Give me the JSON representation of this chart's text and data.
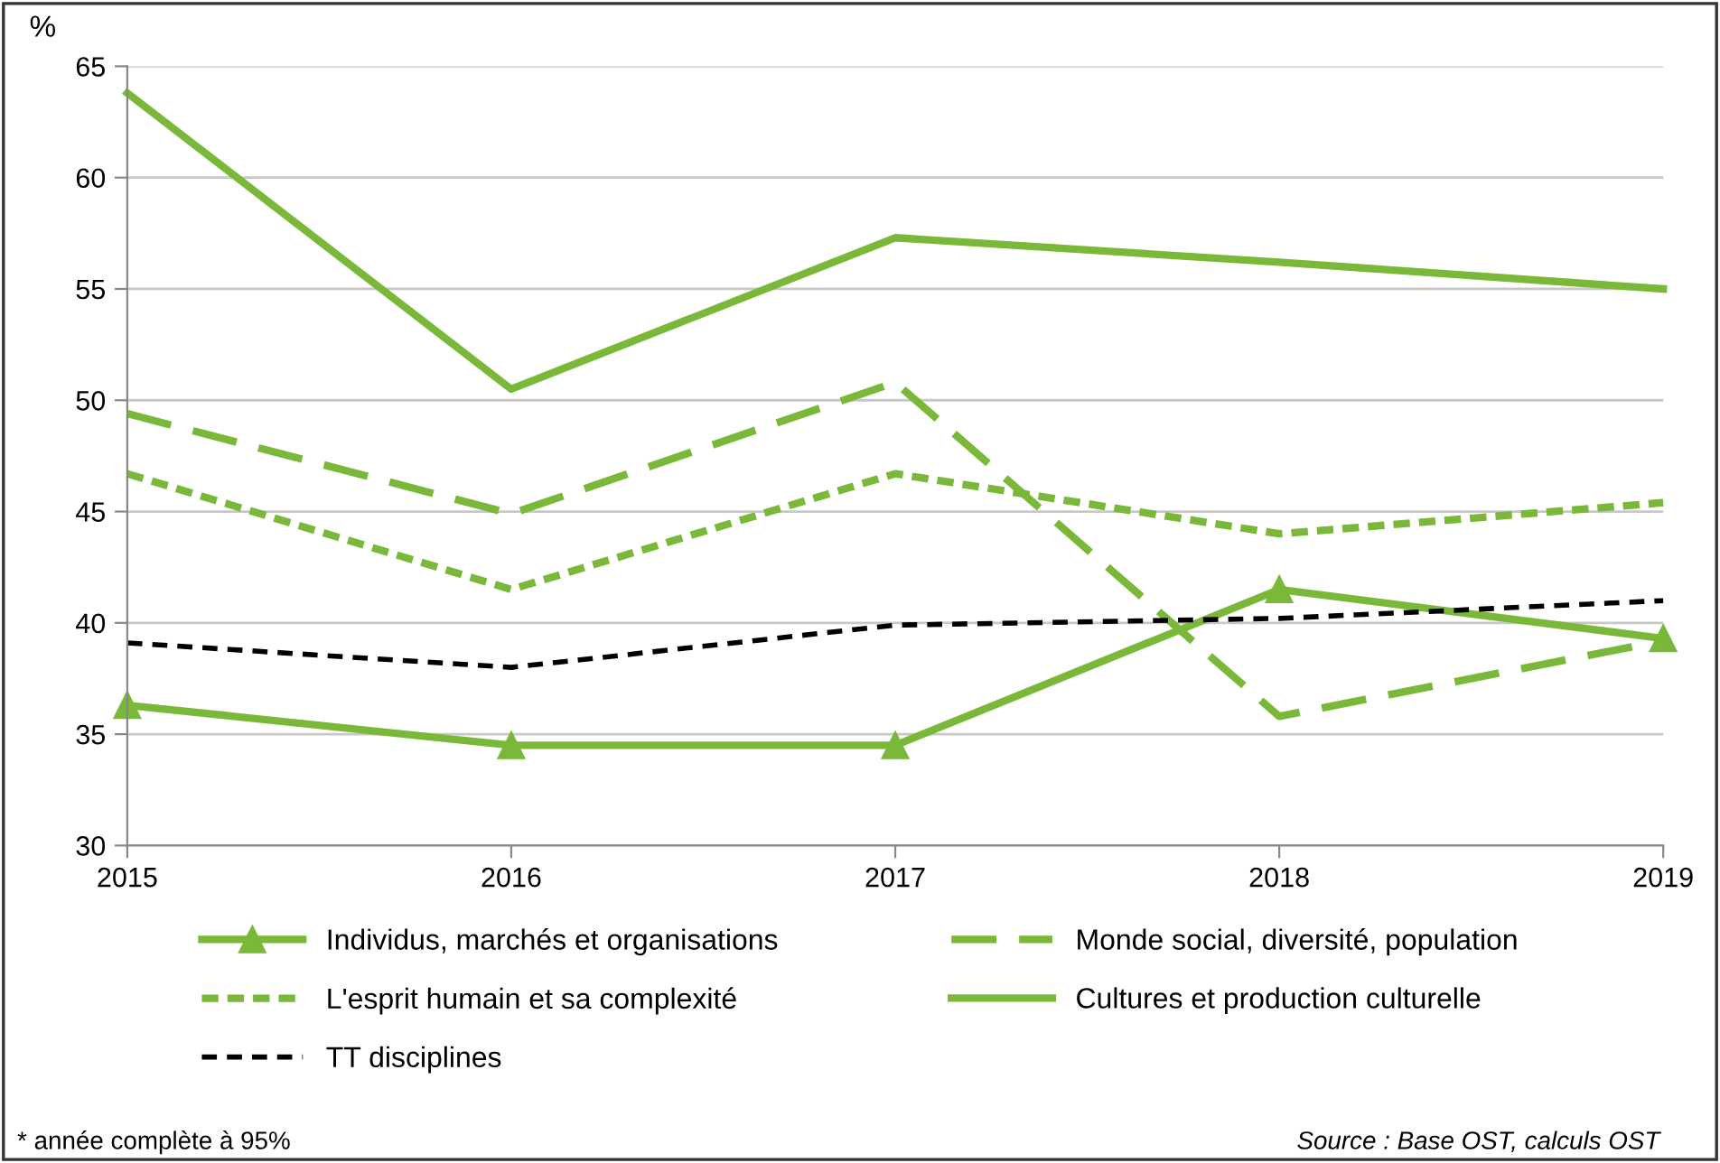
{
  "chart_data": {
    "type": "line",
    "ylabel": "%",
    "x": [
      2015,
      2016,
      2017,
      2018,
      2019
    ],
    "xlim": [
      2015,
      2019
    ],
    "xticks": [
      2015,
      2016,
      2017,
      2018,
      2019
    ],
    "ylim": [
      30,
      65
    ],
    "yticks": [
      30,
      35,
      40,
      45,
      50,
      55,
      60,
      65
    ],
    "grid": "y",
    "legend": "bottom",
    "series": [
      {
        "name": "Individus, marchés et organisations",
        "color": "#7ab83a",
        "line_style": "solid",
        "marker": "triangle",
        "values": [
          36.3,
          34.5,
          34.5,
          41.5,
          39.3
        ]
      },
      {
        "name": "Monde social, diversité, population",
        "color": "#7ab83a",
        "line_style": "dashed",
        "values": [
          49.4,
          44.9,
          50.8,
          35.8,
          39.2
        ]
      },
      {
        "name": "L'esprit humain et sa complexité",
        "color": "#7ab83a",
        "line_style": "dashed",
        "values": [
          46.7,
          41.5,
          46.7,
          44.0,
          45.4
        ]
      },
      {
        "name": "Cultures et production culturelle",
        "color": "#7ab83a",
        "line_style": "solid",
        "values": [
          63.8,
          50.5,
          57.3,
          56.2,
          55.0
        ]
      },
      {
        "name": "TT disciplines",
        "color": "#000000",
        "line_style": "dashed",
        "values": [
          39.1,
          38.0,
          39.9,
          40.2,
          41.0
        ]
      }
    ],
    "annotations": [
      "* année complète à 95%",
      "Source : Base OST, calculs OST"
    ]
  }
}
